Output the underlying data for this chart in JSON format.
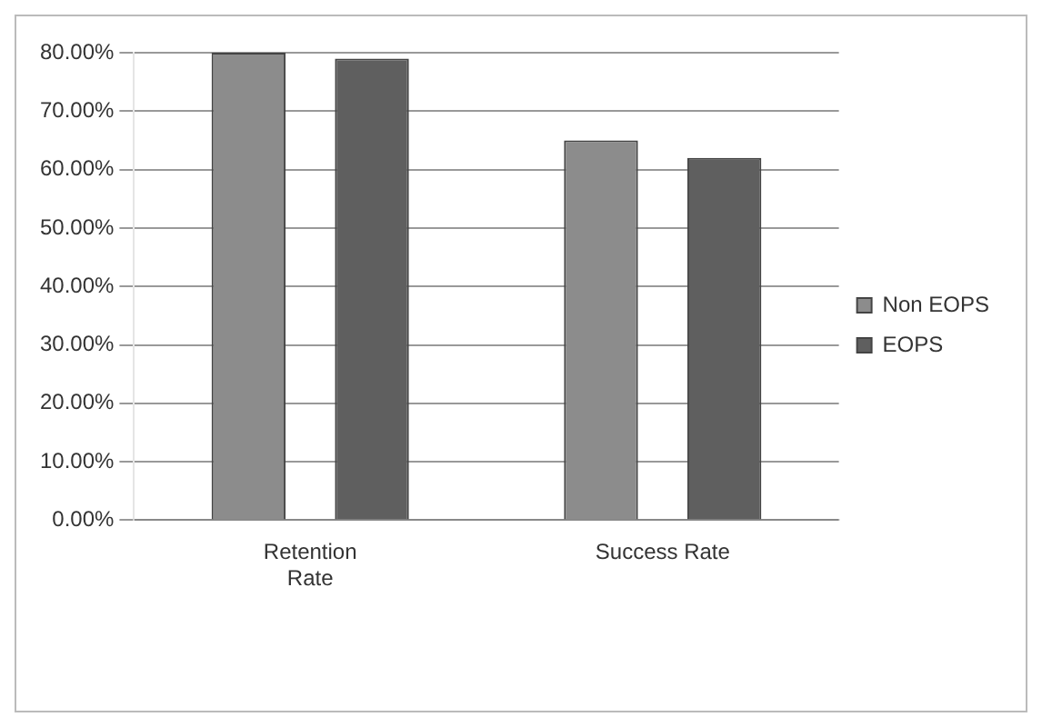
{
  "chart_data": {
    "type": "bar",
    "categories": [
      "Retention Rate",
      "Success Rate"
    ],
    "series": [
      {
        "name": "Non EOPS",
        "color": "#8c8c8c",
        "values": [
          80,
          65
        ]
      },
      {
        "name": "EOPS",
        "color": "#5f5f5f",
        "values": [
          79,
          62
        ]
      }
    ],
    "ylim": [
      0,
      80
    ],
    "yticks": [
      {
        "value": 0,
        "label": "0.00%"
      },
      {
        "value": 10,
        "label": "10.00%"
      },
      {
        "value": 20,
        "label": "20.00%"
      },
      {
        "value": 30,
        "label": "30.00%"
      },
      {
        "value": 40,
        "label": "40.00%"
      },
      {
        "value": 50,
        "label": "50.00%"
      },
      {
        "value": 60,
        "label": "60.00%"
      },
      {
        "value": 70,
        "label": "70.00%"
      },
      {
        "value": 80,
        "label": "80.00%"
      }
    ],
    "grid": "y",
    "legend": "right"
  }
}
